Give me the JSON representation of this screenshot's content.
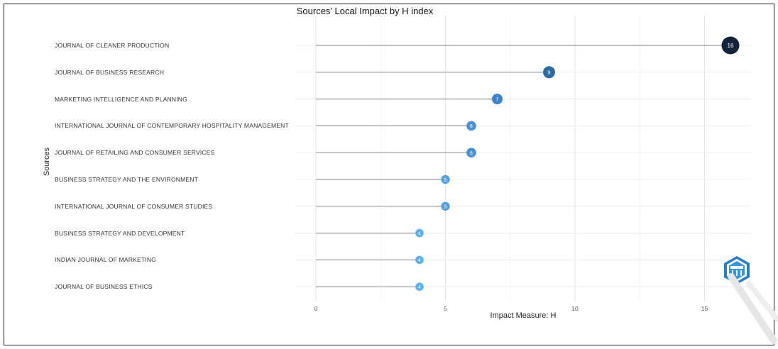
{
  "chart_data": {
    "type": "lollipop",
    "title": "Sources' Local Impact by H index",
    "xlabel": "Impact Measure: H",
    "ylabel": "Sources",
    "xlim": [
      0,
      17
    ],
    "xticks": [
      0,
      5,
      10,
      15
    ],
    "categories": [
      "JOURNAL OF CLEANER PRODUCTION",
      "JOURNAL OF BUSINESS RESEARCH",
      "MARKETING INTELLIGENCE AND PLANNING",
      "INTERNATIONAL JOURNAL OF CONTEMPORARY HOSPITALITY MANAGEMENT",
      "JOURNAL OF RETAILING AND CONSUMER SERVICES",
      "BUSINESS STRATEGY AND THE ENVIRONMENT",
      "INTERNATIONAL JOURNAL OF CONSUMER STUDIES",
      "BUSINESS STRATEGY AND DEVELOPMENT",
      "INDIAN JOURNAL OF MARKETING",
      "JOURNAL OF BUSINESS ETHICS"
    ],
    "values": [
      16,
      9,
      7,
      6,
      6,
      5,
      5,
      4,
      4,
      4
    ],
    "colors": [
      "#13243a",
      "#2e6aa0",
      "#3d84c4",
      "#4a91d1",
      "#4a91d1",
      "#55a0de",
      "#55a0de",
      "#5cb0ea",
      "#5cb0ea",
      "#5cb0ea"
    ],
    "grid": true,
    "legend": "none"
  },
  "logo": {
    "icon": "bibliometrix-logo-icon"
  }
}
